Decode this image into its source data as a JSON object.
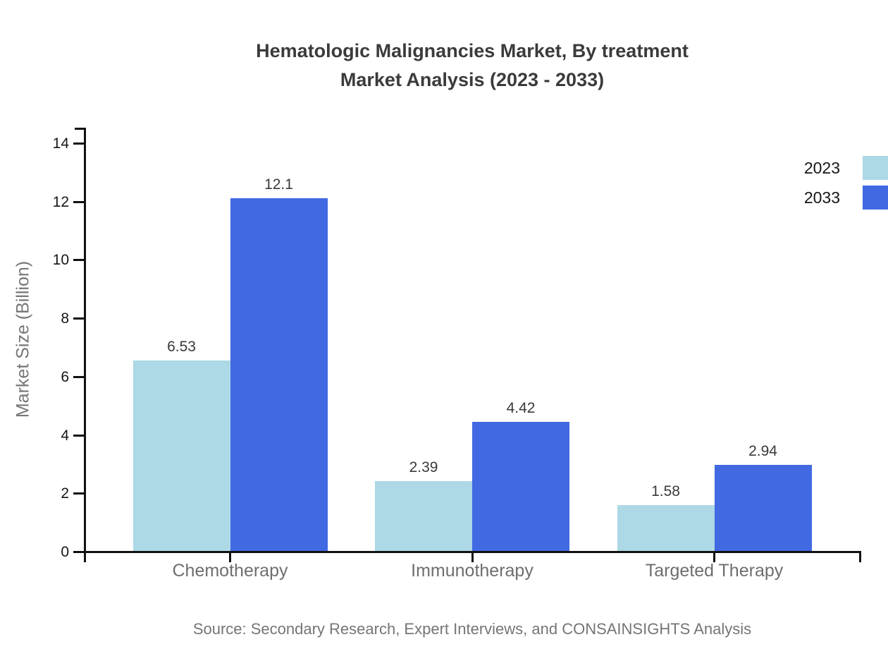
{
  "title": {
    "line1": "Hematologic Malignancies Market, By treatment",
    "line2": "Market Analysis (2023 - 2033)"
  },
  "source_note": "Source: Secondary Research, Expert Interviews, and CONSAINSIGHTS Analysis",
  "chart_data": {
    "type": "bar",
    "title": "Hematologic Malignancies Market, By treatment Market Analysis (2023 - 2033)",
    "categories": [
      "Chemotherapy",
      "Immunotherapy",
      "Targeted Therapy"
    ],
    "series": [
      {
        "name": "2023",
        "color": "#add8e6",
        "values": [
          6.53,
          2.39,
          1.58
        ]
      },
      {
        "name": "2033",
        "color": "#4169e1",
        "values": [
          12.1,
          4.42,
          2.94
        ]
      }
    ],
    "xlabel": "",
    "ylabel": "Market Size (Billion)",
    "yticks": [
      0,
      2,
      4,
      6,
      8,
      10,
      12,
      14
    ],
    "ylim": [
      0,
      14.5
    ],
    "grid": false,
    "value_labels": true,
    "legend_position": "top-right"
  },
  "colors": {
    "series_2023": "#add8e6",
    "series_2033": "#4169e1",
    "axis": "#111111",
    "title_text": "#3b3b3b",
    "category_text": "#6e6e6e",
    "muted_text": "#757575",
    "background": "#ffffff"
  }
}
